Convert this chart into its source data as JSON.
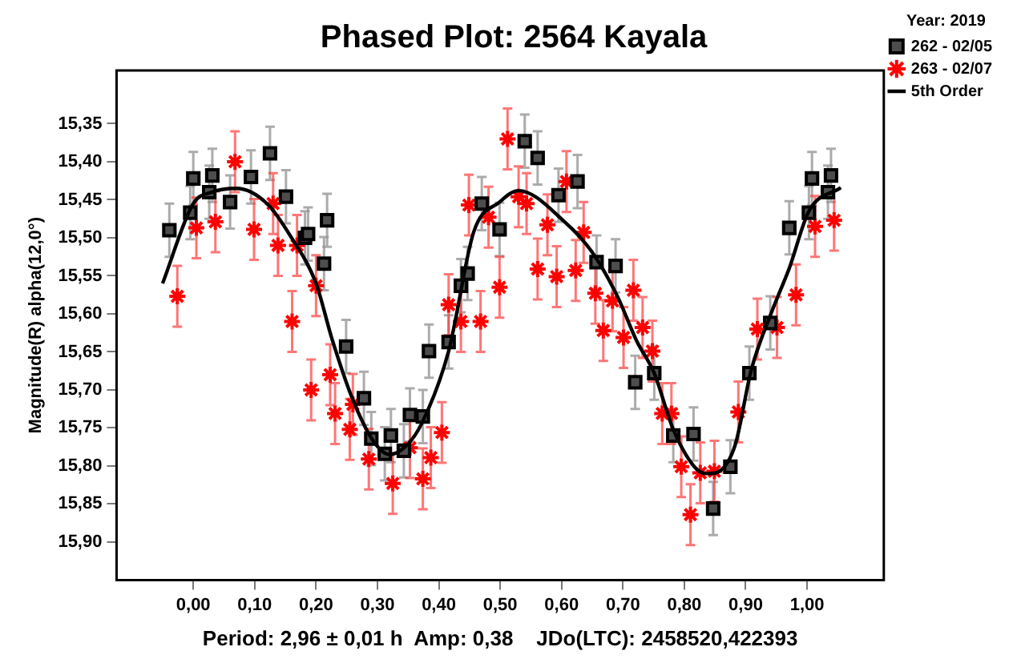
{
  "chart_data": {
    "type": "scatter",
    "title": "Phased Plot: 2564 Kayala",
    "xlabel": "Period: 2,96 ± 0,01 h  Amp: 0,38    JDo(LTC): 2458520,422393",
    "ylabel": "Magnitude(R) alpha(12,0°)",
    "legend_title": "Year: 2019",
    "legend": "top right",
    "grid": false,
    "xlim": [
      -0.125,
      1.125
    ],
    "xticks": [
      {
        "value": 0,
        "label": "0,00"
      },
      {
        "value": 0.1,
        "label": "0,10"
      },
      {
        "value": 0.2,
        "label": "0,20"
      },
      {
        "value": 0.3,
        "label": "0,30"
      },
      {
        "value": 0.4,
        "label": "0,40"
      },
      {
        "value": 0.5,
        "label": "0,50"
      },
      {
        "value": 0.6,
        "label": "0,60"
      },
      {
        "value": 0.7,
        "label": "0,70"
      },
      {
        "value": 0.8,
        "label": "0,80"
      },
      {
        "value": 0.9,
        "label": "0,90"
      },
      {
        "value": 1,
        "label": "1,00"
      }
    ],
    "ylim": [
      15.95,
      15.28
    ],
    "yticks": [
      {
        "value": 15.35,
        "label": "15,35"
      },
      {
        "value": 15.4,
        "label": "15,40"
      },
      {
        "value": 15.45,
        "label": "15,45"
      },
      {
        "value": 15.5,
        "label": "15,50"
      },
      {
        "value": 15.55,
        "label": "15,55"
      },
      {
        "value": 15.6,
        "label": "15,60"
      },
      {
        "value": 15.65,
        "label": "15,65"
      },
      {
        "value": 15.7,
        "label": "15,70"
      },
      {
        "value": 15.75,
        "label": "15,75"
      },
      {
        "value": 15.8,
        "label": "15,80"
      },
      {
        "value": 15.85,
        "label": "15,85"
      },
      {
        "value": 15.9,
        "label": "15,90"
      }
    ],
    "series": [
      {
        "name": "262 - 02/05",
        "marker": "square",
        "color": "#4d4d4d",
        "x": [
          -0.039,
          -0.005,
          0.0,
          0.026,
          0.031,
          0.06,
          0.094,
          0.125,
          0.151,
          0.182,
          0.187,
          0.213,
          0.218,
          0.249,
          0.278,
          0.29,
          0.312,
          0.322,
          0.343,
          0.353,
          0.374,
          0.384,
          0.416,
          0.436,
          0.447,
          0.47,
          0.499,
          0.54,
          0.561,
          0.595,
          0.626,
          0.657,
          0.688,
          0.72,
          0.751,
          0.782,
          0.815,
          0.847,
          0.875,
          0.906,
          0.94,
          0.971,
          1.003,
          1.008,
          1.034,
          1.039
        ],
        "values": [
          15.49,
          15.467,
          15.422,
          15.44,
          15.418,
          15.453,
          15.42,
          15.389,
          15.446,
          15.5,
          15.495,
          15.534,
          15.477,
          15.643,
          15.711,
          15.764,
          15.784,
          15.76,
          15.78,
          15.733,
          15.735,
          15.649,
          15.637,
          15.563,
          15.547,
          15.455,
          15.489,
          15.373,
          15.395,
          15.444,
          15.426,
          15.532,
          15.537,
          15.69,
          15.678,
          15.76,
          15.758,
          15.856,
          15.801,
          15.678,
          15.612,
          15.487,
          15.467,
          15.422,
          15.44,
          15.418
        ],
        "errors": [
          0.035,
          0.035,
          0.035,
          0.035,
          0.035,
          0.035,
          0.035,
          0.035,
          0.035,
          0.035,
          0.035,
          0.035,
          0.035,
          0.035,
          0.035,
          0.035,
          0.035,
          0.035,
          0.035,
          0.035,
          0.035,
          0.035,
          0.035,
          0.035,
          0.035,
          0.035,
          0.035,
          0.035,
          0.035,
          0.035,
          0.035,
          0.035,
          0.035,
          0.035,
          0.035,
          0.035,
          0.035,
          0.035,
          0.035,
          0.035,
          0.035,
          0.035,
          0.035,
          0.035,
          0.035,
          0.035
        ]
      },
      {
        "name": "263 - 02/07",
        "marker": "cross",
        "color": "#ff0000",
        "x": [
          -0.026,
          0.005,
          0.036,
          0.068,
          0.099,
          0.13,
          0.138,
          0.161,
          0.169,
          0.192,
          0.2,
          0.223,
          0.231,
          0.255,
          0.26,
          0.286,
          0.325,
          0.353,
          0.374,
          0.387,
          0.405,
          0.416,
          0.436,
          0.449,
          0.468,
          0.481,
          0.499,
          0.512,
          0.53,
          0.543,
          0.561,
          0.577,
          0.592,
          0.608,
          0.623,
          0.636,
          0.655,
          0.668,
          0.683,
          0.701,
          0.717,
          0.732,
          0.748,
          0.764,
          0.779,
          0.795,
          0.81,
          0.826,
          0.849,
          0.888,
          0.919,
          0.951,
          0.982,
          1.013,
          1.044
        ],
        "values": [
          15.577,
          15.487,
          15.479,
          15.4,
          15.489,
          15.455,
          15.51,
          15.61,
          15.51,
          15.7,
          15.563,
          15.68,
          15.731,
          15.752,
          15.719,
          15.791,
          15.823,
          15.776,
          15.817,
          15.789,
          15.756,
          15.588,
          15.61,
          15.457,
          15.61,
          15.473,
          15.565,
          15.37,
          15.446,
          15.455,
          15.541,
          15.483,
          15.551,
          15.426,
          15.543,
          15.493,
          15.573,
          15.622,
          15.583,
          15.631,
          15.569,
          15.618,
          15.649,
          15.731,
          15.731,
          15.801,
          15.864,
          15.809,
          15.807,
          15.729,
          15.62,
          15.618,
          15.575,
          15.485,
          15.477
        ],
        "errors": [
          0.04,
          0.04,
          0.04,
          0.04,
          0.04,
          0.04,
          0.04,
          0.04,
          0.04,
          0.04,
          0.04,
          0.04,
          0.04,
          0.04,
          0.04,
          0.04,
          0.04,
          0.04,
          0.04,
          0.04,
          0.04,
          0.04,
          0.04,
          0.04,
          0.04,
          0.04,
          0.04,
          0.04,
          0.04,
          0.04,
          0.04,
          0.04,
          0.04,
          0.04,
          0.04,
          0.04,
          0.04,
          0.04,
          0.04,
          0.04,
          0.04,
          0.04,
          0.04,
          0.04,
          0.04,
          0.04,
          0.04,
          0.04,
          0.04,
          0.04,
          0.04,
          0.04,
          0.04,
          0.04,
          0.04
        ]
      },
      {
        "name": "5th Order",
        "type": "line",
        "marker": "none",
        "line_style": "solid",
        "color": "#000000",
        "x": [
          -0.05,
          0.0,
          0.03,
          0.07,
          0.12,
          0.16,
          0.2,
          0.226,
          0.26,
          0.294,
          0.32,
          0.345,
          0.371,
          0.416,
          0.457,
          0.499,
          0.53,
          0.605,
          0.649,
          0.691,
          0.722,
          0.751,
          0.782,
          0.821,
          0.84,
          0.857,
          0.883,
          0.909,
          0.943,
          0.971,
          1.003,
          1.055
        ],
        "values": [
          15.56,
          15.455,
          15.44,
          15.435,
          15.455,
          15.5,
          15.56,
          15.633,
          15.713,
          15.768,
          15.785,
          15.775,
          15.746,
          15.649,
          15.492,
          15.453,
          15.438,
          15.479,
          15.518,
          15.577,
          15.635,
          15.678,
          15.752,
          15.805,
          15.81,
          15.807,
          15.772,
          15.674,
          15.596,
          15.54,
          15.465,
          15.434
        ]
      }
    ]
  }
}
